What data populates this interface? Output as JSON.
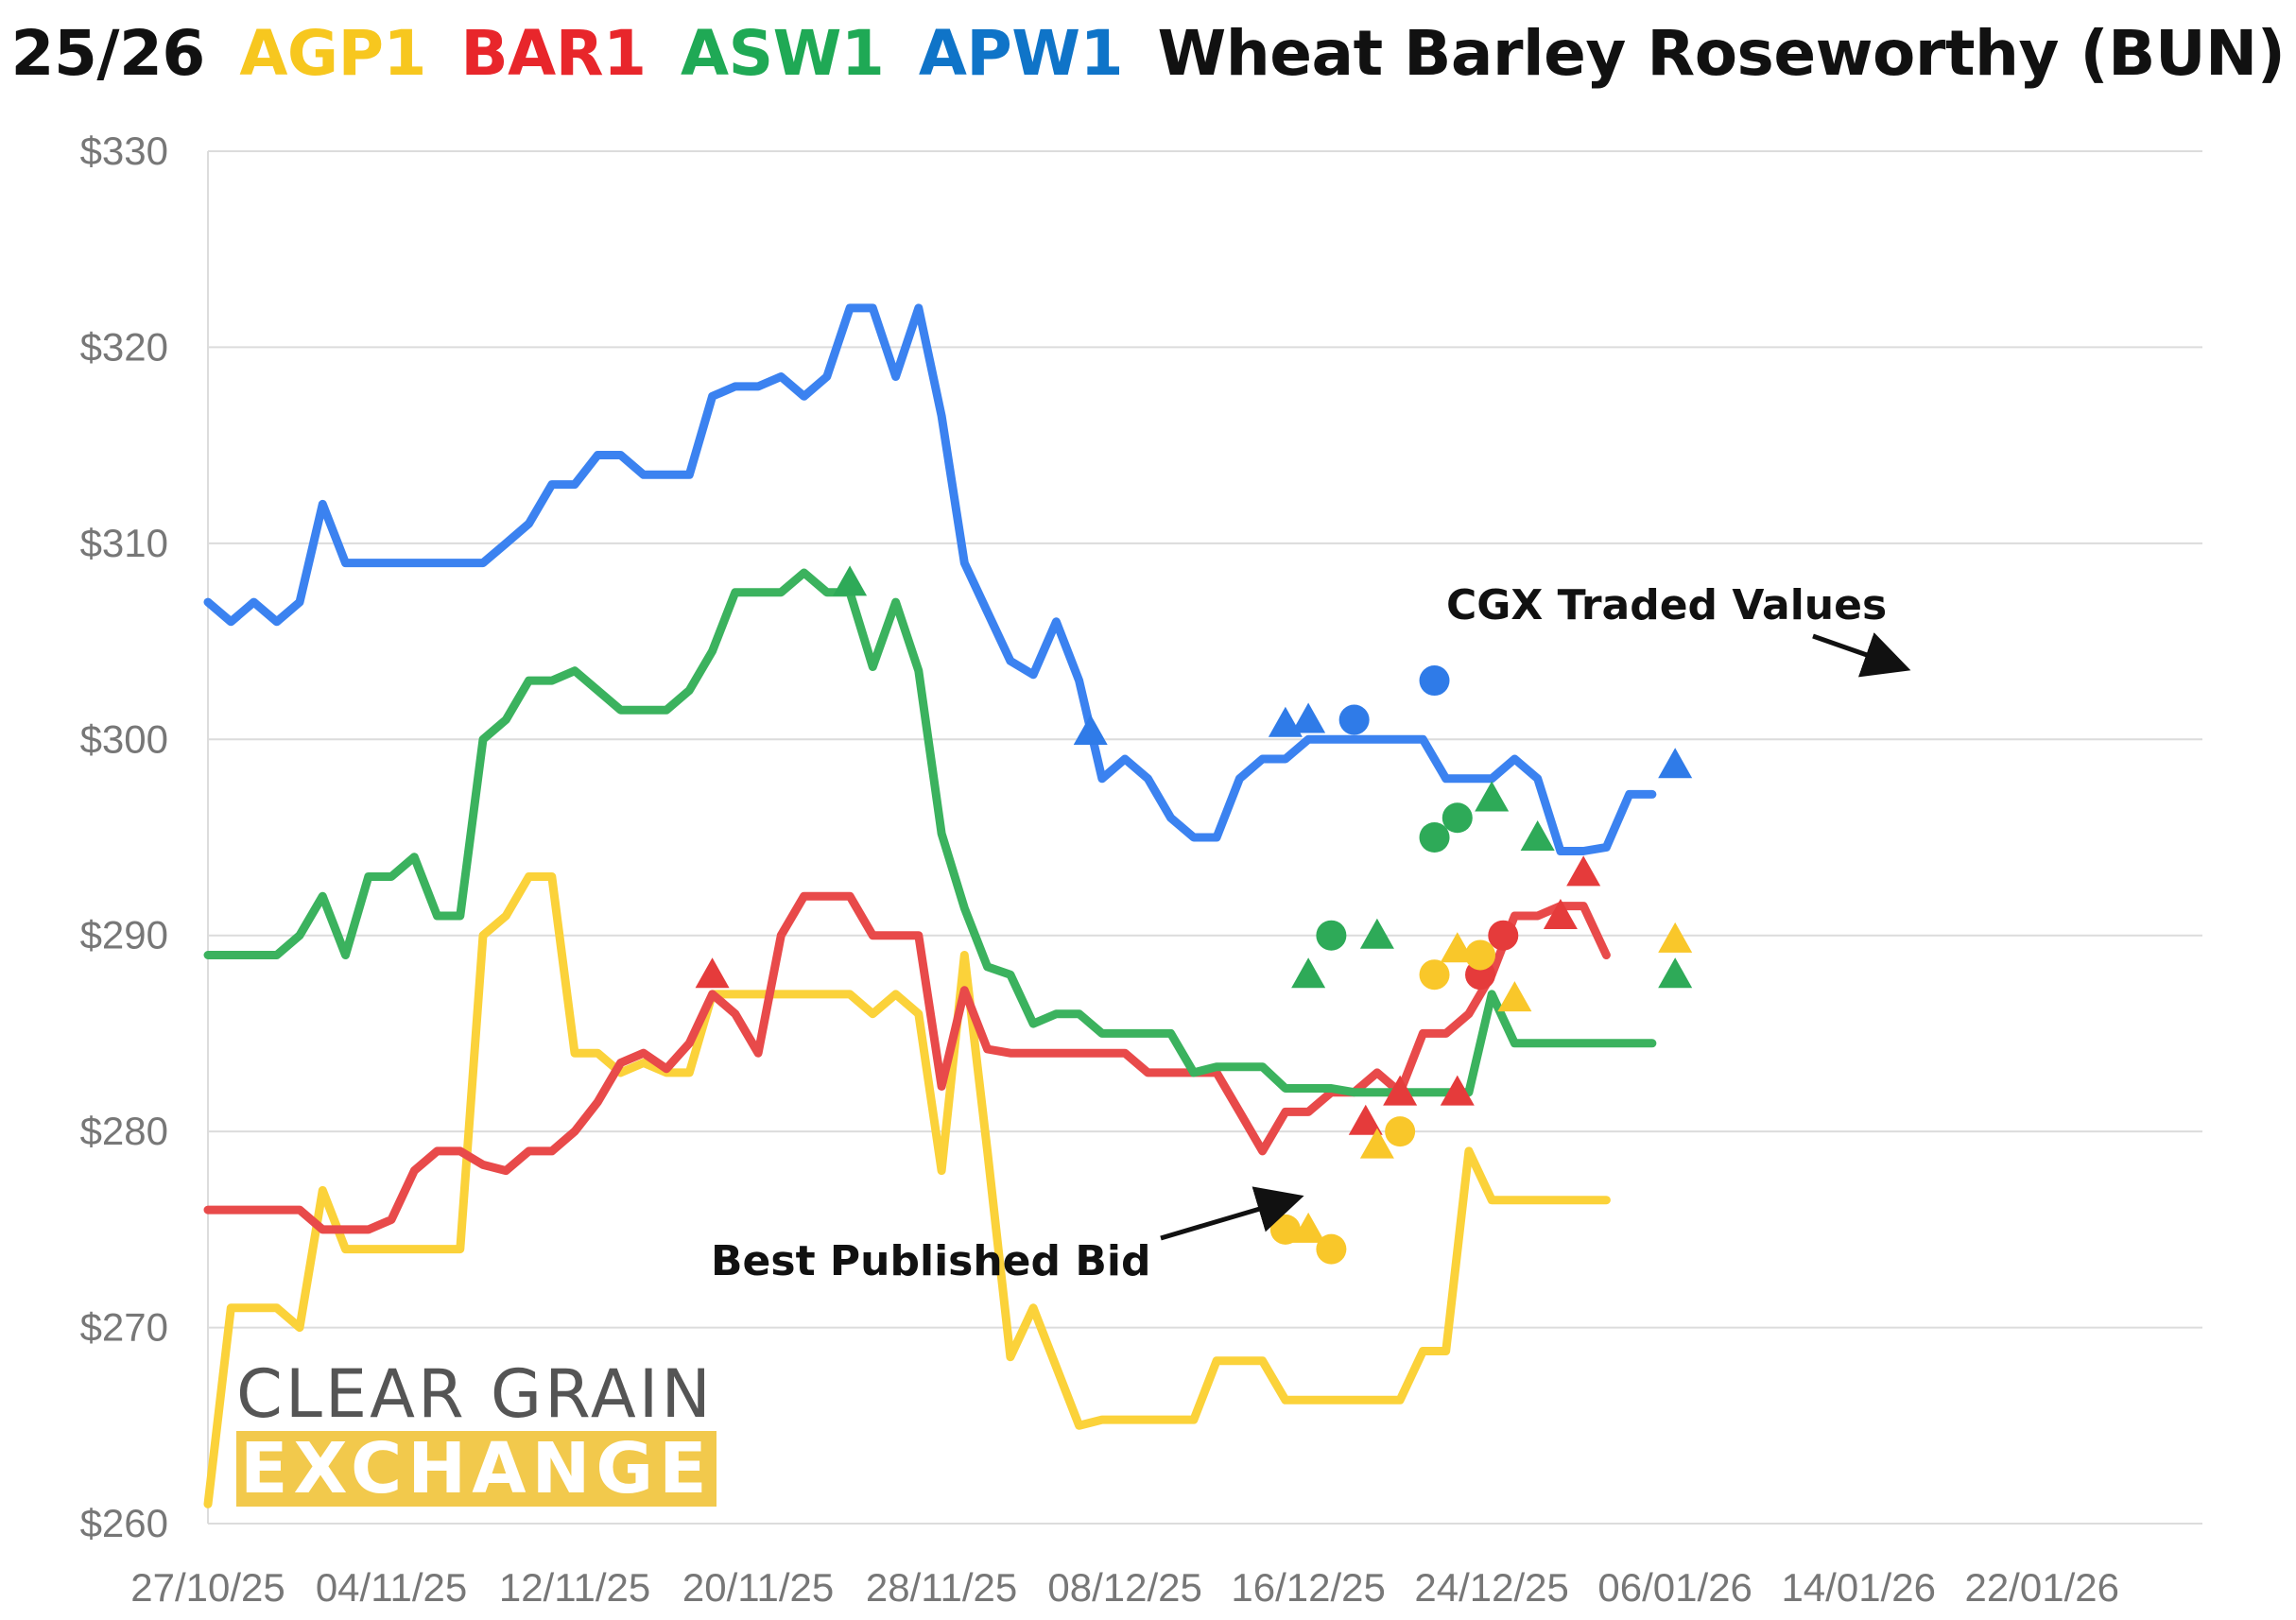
{
  "title": {
    "prefix": "25/26",
    "agp1": "AGP1",
    "bar1": "BAR1",
    "asw1": "ASW1",
    "apw1": "APW1",
    "suffix": "Wheat Barley Roseworthy (BUN)"
  },
  "colors": {
    "AGP1": "#f7c71f",
    "BAR1": "#e8262b",
    "ASW1": "#1fa955",
    "APW1": "#0f74c8",
    "APW1_line": "#3b82f0",
    "ASW1_line": "#3bb25e",
    "BAR1_line": "#e84a4a",
    "AGP1_line": "#fbd23a"
  },
  "annotations": {
    "cgx": "CGX Traded Values",
    "bpb": "Best Published Bid"
  },
  "logo": {
    "line1": "CLEAR GRAIN",
    "line2": "EXCHANGE"
  },
  "chart_data": {
    "type": "line",
    "x_label_dates": [
      "27/10/25",
      "04/11/25",
      "12/11/25",
      "20/11/25",
      "28/11/25",
      "08/12/25",
      "16/12/25",
      "24/12/25",
      "06/01/26",
      "14/01/26",
      "22/01/26"
    ],
    "yticks": [
      "$260",
      "$270",
      "$280",
      "$290",
      "$300",
      "$310",
      "$320",
      "$330"
    ],
    "ylim": [
      260,
      330
    ],
    "x_range_days": [
      0,
      87
    ],
    "grid": true,
    "series": [
      {
        "name": "APW1",
        "line": [
          [
            0,
            307
          ],
          [
            1,
            306
          ],
          [
            2,
            307
          ],
          [
            3,
            306
          ],
          [
            4,
            307
          ],
          [
            5,
            312
          ],
          [
            6,
            309
          ],
          [
            7,
            309
          ],
          [
            8,
            309
          ],
          [
            9,
            309
          ],
          [
            10,
            309
          ],
          [
            11,
            309
          ],
          [
            12,
            309
          ],
          [
            13,
            310
          ],
          [
            14,
            311
          ],
          [
            15,
            313
          ],
          [
            16,
            313
          ],
          [
            17,
            314.5
          ],
          [
            18,
            314.5
          ],
          [
            19,
            313.5
          ],
          [
            20,
            313.5
          ],
          [
            21,
            313.5
          ],
          [
            22,
            317.5
          ],
          [
            23,
            318
          ],
          [
            24,
            318
          ],
          [
            25,
            318.5
          ],
          [
            26,
            317.5
          ],
          [
            27,
            318.5
          ],
          [
            28,
            322
          ],
          [
            29,
            322
          ],
          [
            30,
            318.5
          ],
          [
            31,
            322
          ],
          [
            32,
            316.5
          ],
          [
            33,
            309
          ],
          [
            34,
            306.5
          ],
          [
            35,
            304
          ],
          [
            36,
            303.3
          ],
          [
            37,
            306
          ],
          [
            38,
            303
          ],
          [
            39,
            298
          ],
          [
            40,
            299
          ],
          [
            41,
            298
          ],
          [
            42,
            296
          ],
          [
            43,
            295
          ],
          [
            44,
            295
          ],
          [
            45,
            298
          ],
          [
            46,
            299
          ],
          [
            47,
            299
          ],
          [
            48,
            300
          ],
          [
            49,
            300
          ],
          [
            50,
            300
          ],
          [
            51,
            300
          ],
          [
            52,
            300
          ],
          [
            53,
            300
          ],
          [
            54,
            298
          ],
          [
            55,
            298
          ],
          [
            56,
            298
          ],
          [
            57,
            299
          ],
          [
            58,
            298
          ],
          [
            59,
            294.3
          ],
          [
            60,
            294.3
          ],
          [
            61,
            294.5
          ],
          [
            62,
            297.2
          ],
          [
            63,
            297.2
          ]
        ],
        "traded_triangle": [
          [
            38.5,
            300.4
          ],
          [
            47,
            300.8
          ],
          [
            48,
            301
          ],
          [
            64,
            298.7
          ]
        ],
        "traded_circle": [
          [
            50,
            301
          ],
          [
            53.5,
            303
          ]
        ]
      },
      {
        "name": "ASW1",
        "line": [
          [
            0,
            289
          ],
          [
            1,
            289
          ],
          [
            2,
            289
          ],
          [
            3,
            289
          ],
          [
            4,
            290
          ],
          [
            5,
            292
          ],
          [
            6,
            289
          ],
          [
            7,
            293
          ],
          [
            8,
            293
          ],
          [
            9,
            294
          ],
          [
            10,
            291
          ],
          [
            11,
            291
          ],
          [
            12,
            300
          ],
          [
            13,
            301
          ],
          [
            14,
            303
          ],
          [
            15,
            303
          ],
          [
            16,
            303.5
          ],
          [
            17,
            302.5
          ],
          [
            18,
            301.5
          ],
          [
            19,
            301.5
          ],
          [
            20,
            301.5
          ],
          [
            21,
            302.5
          ],
          [
            22,
            304.5
          ],
          [
            23,
            307.5
          ],
          [
            24,
            307.5
          ],
          [
            25,
            307.5
          ],
          [
            26,
            308.5
          ],
          [
            27,
            307.5
          ],
          [
            28,
            307.5
          ],
          [
            29,
            303.7
          ],
          [
            30,
            307
          ],
          [
            31,
            303.5
          ],
          [
            32,
            295.2
          ],
          [
            33,
            291.4
          ],
          [
            34,
            288.4
          ],
          [
            35,
            288
          ],
          [
            36,
            285.5
          ],
          [
            37,
            286
          ],
          [
            38,
            286
          ],
          [
            39,
            285
          ],
          [
            40,
            285
          ],
          [
            41,
            285
          ],
          [
            42,
            285
          ],
          [
            43,
            283
          ],
          [
            44,
            283.3
          ],
          [
            45,
            283.3
          ],
          [
            46,
            283.3
          ],
          [
            47,
            282.2
          ],
          [
            48,
            282.2
          ],
          [
            49,
            282.2
          ],
          [
            50,
            282
          ],
          [
            51,
            282
          ],
          [
            52,
            282
          ],
          [
            53,
            282
          ],
          [
            54,
            282
          ],
          [
            55,
            282
          ],
          [
            56,
            287
          ],
          [
            57,
            284.5
          ],
          [
            58,
            284.5
          ],
          [
            59,
            284.5
          ],
          [
            60,
            284.5
          ],
          [
            61,
            284.5
          ],
          [
            62,
            284.5
          ],
          [
            63,
            284.5
          ]
        ],
        "traded_triangle": [
          [
            28,
            308
          ],
          [
            48,
            288
          ],
          [
            51,
            290
          ],
          [
            56,
            297
          ],
          [
            58,
            295
          ],
          [
            64,
            288
          ]
        ],
        "traded_circle": [
          [
            49,
            290
          ],
          [
            53.5,
            295
          ],
          [
            54.5,
            296
          ]
        ]
      },
      {
        "name": "BAR1",
        "line": [
          [
            0,
            276
          ],
          [
            1,
            276
          ],
          [
            2,
            276
          ],
          [
            3,
            276
          ],
          [
            4,
            276
          ],
          [
            5,
            275
          ],
          [
            6,
            275
          ],
          [
            7,
            275
          ],
          [
            8,
            275.5
          ],
          [
            9,
            278
          ],
          [
            10,
            279
          ],
          [
            11,
            279
          ],
          [
            12,
            278.3
          ],
          [
            13,
            278
          ],
          [
            14,
            279
          ],
          [
            15,
            279
          ],
          [
            16,
            280
          ],
          [
            17,
            281.5
          ],
          [
            18,
            283.5
          ],
          [
            19,
            284
          ],
          [
            20,
            283.2
          ],
          [
            21,
            284.5
          ],
          [
            22,
            287
          ],
          [
            23,
            286
          ],
          [
            24,
            284
          ],
          [
            25,
            290
          ],
          [
            26,
            292
          ],
          [
            27,
            292
          ],
          [
            28,
            292
          ],
          [
            29,
            290
          ],
          [
            30,
            290
          ],
          [
            31,
            290
          ],
          [
            32,
            282.3
          ],
          [
            33,
            287.2
          ],
          [
            34,
            284.2
          ],
          [
            35,
            284
          ],
          [
            36,
            284
          ],
          [
            37,
            284
          ],
          [
            38,
            284
          ],
          [
            39,
            284
          ],
          [
            40,
            284
          ],
          [
            41,
            283
          ],
          [
            42,
            283
          ],
          [
            43,
            283
          ],
          [
            44,
            283
          ],
          [
            45,
            281
          ],
          [
            46,
            279
          ],
          [
            47,
            281
          ],
          [
            48,
            281
          ],
          [
            49,
            282
          ],
          [
            50,
            282
          ],
          [
            51,
            283
          ],
          [
            52,
            282
          ],
          [
            53,
            285
          ],
          [
            54,
            285
          ],
          [
            55,
            286
          ],
          [
            56,
            288
          ],
          [
            57,
            291
          ],
          [
            58,
            291
          ],
          [
            59,
            291.5
          ],
          [
            60,
            291.5
          ],
          [
            61,
            289
          ]
        ],
        "traded_triangle": [
          [
            22,
            288
          ],
          [
            50.5,
            280.5
          ],
          [
            52,
            282
          ],
          [
            54.5,
            282
          ],
          [
            59,
            291
          ],
          [
            60,
            293.2
          ]
        ],
        "traded_circle": [
          [
            55.5,
            288
          ],
          [
            56.5,
            290
          ]
        ]
      },
      {
        "name": "AGP1",
        "line": [
          [
            0,
            261
          ],
          [
            1,
            271
          ],
          [
            2,
            271
          ],
          [
            3,
            271
          ],
          [
            4,
            270
          ],
          [
            5,
            277
          ],
          [
            6,
            274
          ],
          [
            7,
            274
          ],
          [
            8,
            274
          ],
          [
            9,
            274
          ],
          [
            10,
            274
          ],
          [
            11,
            274
          ],
          [
            12,
            290
          ],
          [
            13,
            291
          ],
          [
            14,
            293
          ],
          [
            15,
            293
          ],
          [
            16,
            284
          ],
          [
            17,
            284
          ],
          [
            18,
            283
          ],
          [
            19,
            283.5
          ],
          [
            20,
            283
          ],
          [
            21,
            283
          ],
          [
            22,
            287
          ],
          [
            23,
            287
          ],
          [
            24,
            287
          ],
          [
            25,
            287
          ],
          [
            26,
            287
          ],
          [
            27,
            287
          ],
          [
            28,
            287
          ],
          [
            29,
            286
          ],
          [
            30,
            287
          ],
          [
            31,
            286
          ],
          [
            32,
            278
          ],
          [
            33,
            289
          ],
          [
            34,
            279
          ],
          [
            35,
            268.5
          ],
          [
            36,
            271
          ],
          [
            37,
            268
          ],
          [
            38,
            265
          ],
          [
            39,
            265.3
          ],
          [
            40,
            265.3
          ],
          [
            41,
            265.3
          ],
          [
            42,
            265.3
          ],
          [
            43,
            265.3
          ],
          [
            44,
            268.3
          ],
          [
            45,
            268.3
          ],
          [
            46,
            268.3
          ],
          [
            47,
            266.3
          ],
          [
            48,
            266.3
          ],
          [
            49,
            266.3
          ],
          [
            50,
            266.3
          ],
          [
            51,
            266.3
          ],
          [
            52,
            266.3
          ],
          [
            53,
            268.8
          ],
          [
            54,
            268.8
          ],
          [
            55,
            279
          ],
          [
            56,
            276.5
          ],
          [
            57,
            276.5
          ],
          [
            58,
            276.5
          ],
          [
            59,
            276.5
          ],
          [
            60,
            276.5
          ],
          [
            61,
            276.5
          ]
        ],
        "traded_triangle": [
          [
            48,
            275
          ],
          [
            51,
            279.3
          ],
          [
            54.5,
            289.3
          ],
          [
            57,
            286.8
          ],
          [
            64,
            289.8
          ]
        ],
        "traded_circle": [
          [
            47,
            275
          ],
          [
            49,
            274
          ],
          [
            52,
            280
          ],
          [
            53.5,
            288
          ],
          [
            55.5,
            289
          ]
        ]
      }
    ]
  }
}
